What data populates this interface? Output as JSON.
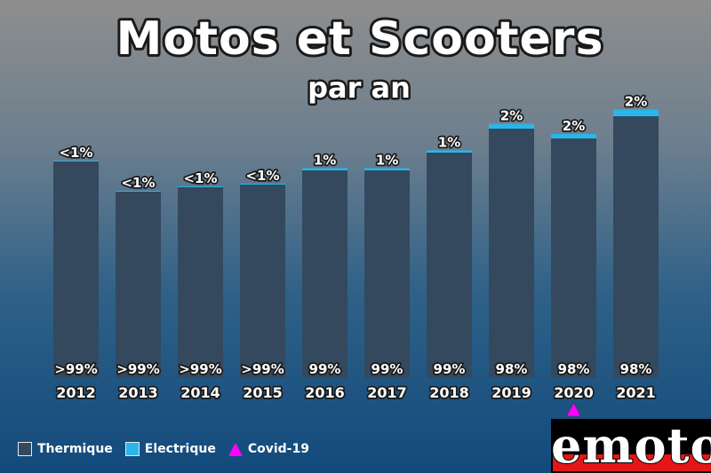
{
  "colors": {
    "thermique": "#34495e",
    "electrique": "#29b6ea",
    "covid": "#ff00ff"
  },
  "legend": {
    "thermique_label": "Thermique",
    "electrique_label": "Electrique",
    "covid_label": "Covid-19"
  },
  "logo": {
    "text": "emoto"
  },
  "chart_data": {
    "type": "bar",
    "stacked": true,
    "title": "Motos et Scooters",
    "subtitle": "par an",
    "categories": [
      "2012",
      "2013",
      "2014",
      "2015",
      "2016",
      "2017",
      "2018",
      "2019",
      "2020",
      "2021"
    ],
    "series": [
      {
        "name": "Thermique",
        "values": [
          244,
          210,
          215,
          218,
          234,
          234,
          254,
          281,
          270,
          295
        ],
        "labels": [
          ">99%",
          ">99%",
          ">99%",
          ">99%",
          "99%",
          "99%",
          "99%",
          "98%",
          "98%",
          "98%"
        ]
      },
      {
        "name": "Electrique",
        "values": [
          1.0,
          1.0,
          1.0,
          1.0,
          2.5,
          2.5,
          2.5,
          5.5,
          5.0,
          7.5
        ],
        "labels": [
          "<1%",
          "<1%",
          "<1%",
          "<1%",
          "1%",
          "1%",
          "1%",
          "2%",
          "2%",
          "2%"
        ]
      }
    ],
    "ylim": [
      0,
      300
    ],
    "grid": false,
    "legend_position": "bottom-left",
    "annotations": [
      {
        "category": "2020",
        "marker": "triangle",
        "label": "Covid-19"
      }
    ]
  }
}
